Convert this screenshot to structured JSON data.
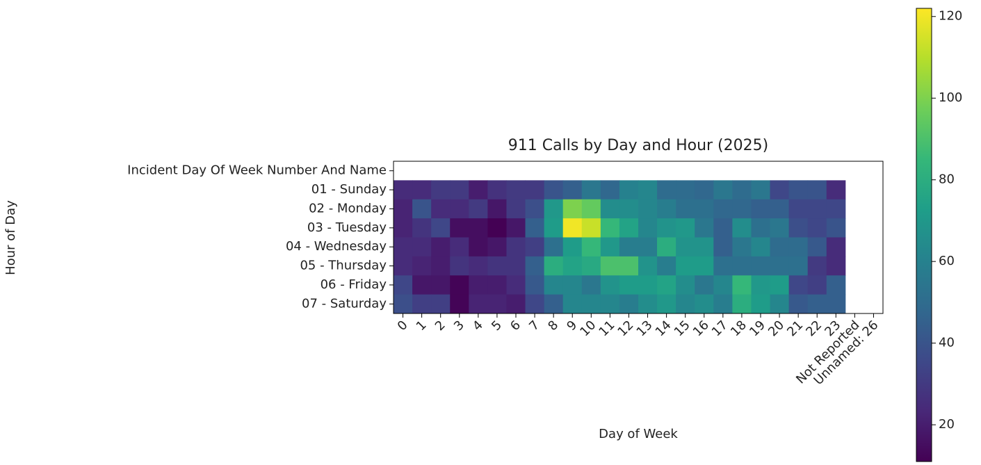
{
  "chart_data": {
    "type": "heatmap",
    "title": "911 Calls by Day and Hour (2025)",
    "x_label": "Day of Week",
    "y_label": "Hour of Day",
    "x_categories": [
      "0",
      "1",
      "2",
      "3",
      "4",
      "5",
      "6",
      "7",
      "8",
      "9",
      "10",
      "11",
      "12",
      "13",
      "14",
      "15",
      "16",
      "17",
      "18",
      "19",
      "20",
      "21",
      "22",
      "23",
      "Not Reported",
      "Unnamed: 26"
    ],
    "y_categories": [
      "Incident Day Of Week Number And Name",
      "01 - Sunday",
      "02 - Monday",
      "03 - Tuesday",
      "04 - Wednesday",
      "05 - Thursday",
      "06 - Friday",
      "07 - Saturday"
    ],
    "values": [
      [
        null,
        null,
        null,
        null,
        null,
        null,
        null,
        null,
        null,
        null,
        null,
        null,
        null,
        null,
        null,
        null,
        null,
        null,
        null,
        null,
        null,
        null,
        null,
        null,
        null,
        null
      ],
      [
        25,
        25,
        30,
        30,
        20,
        27,
        30,
        30,
        40,
        45,
        55,
        48,
        60,
        62,
        50,
        50,
        48,
        55,
        50,
        55,
        35,
        40,
        40,
        25,
        null,
        null
      ],
      [
        22,
        40,
        25,
        25,
        30,
        18,
        30,
        38,
        70,
        100,
        95,
        65,
        65,
        62,
        58,
        52,
        52,
        48,
        48,
        45,
        45,
        35,
        35,
        35,
        null,
        null
      ],
      [
        22,
        28,
        35,
        15,
        15,
        11,
        18,
        45,
        72,
        120,
        113,
        85,
        75,
        62,
        68,
        70,
        55,
        45,
        65,
        52,
        55,
        38,
        35,
        40,
        null,
        null
      ],
      [
        25,
        25,
        20,
        25,
        15,
        18,
        28,
        32,
        52,
        72,
        85,
        70,
        58,
        58,
        80,
        68,
        68,
        45,
        55,
        62,
        50,
        50,
        42,
        25,
        null,
        null
      ],
      [
        25,
        22,
        20,
        28,
        25,
        28,
        28,
        45,
        80,
        75,
        78,
        90,
        90,
        68,
        58,
        72,
        72,
        52,
        52,
        52,
        52,
        52,
        30,
        25,
        null,
        null
      ],
      [
        35,
        18,
        18,
        12,
        20,
        20,
        25,
        42,
        62,
        62,
        55,
        68,
        72,
        72,
        75,
        65,
        55,
        62,
        85,
        70,
        72,
        35,
        32,
        45,
        null,
        null
      ],
      [
        38,
        32,
        32,
        12,
        22,
        22,
        20,
        35,
        45,
        62,
        62,
        62,
        58,
        65,
        70,
        62,
        65,
        58,
        80,
        72,
        62,
        42,
        45,
        45,
        null,
        null
      ]
    ],
    "colormap": "viridis",
    "clim": [
      11,
      122
    ],
    "colorbar_ticks": [
      20,
      40,
      60,
      80,
      100,
      120
    ]
  }
}
